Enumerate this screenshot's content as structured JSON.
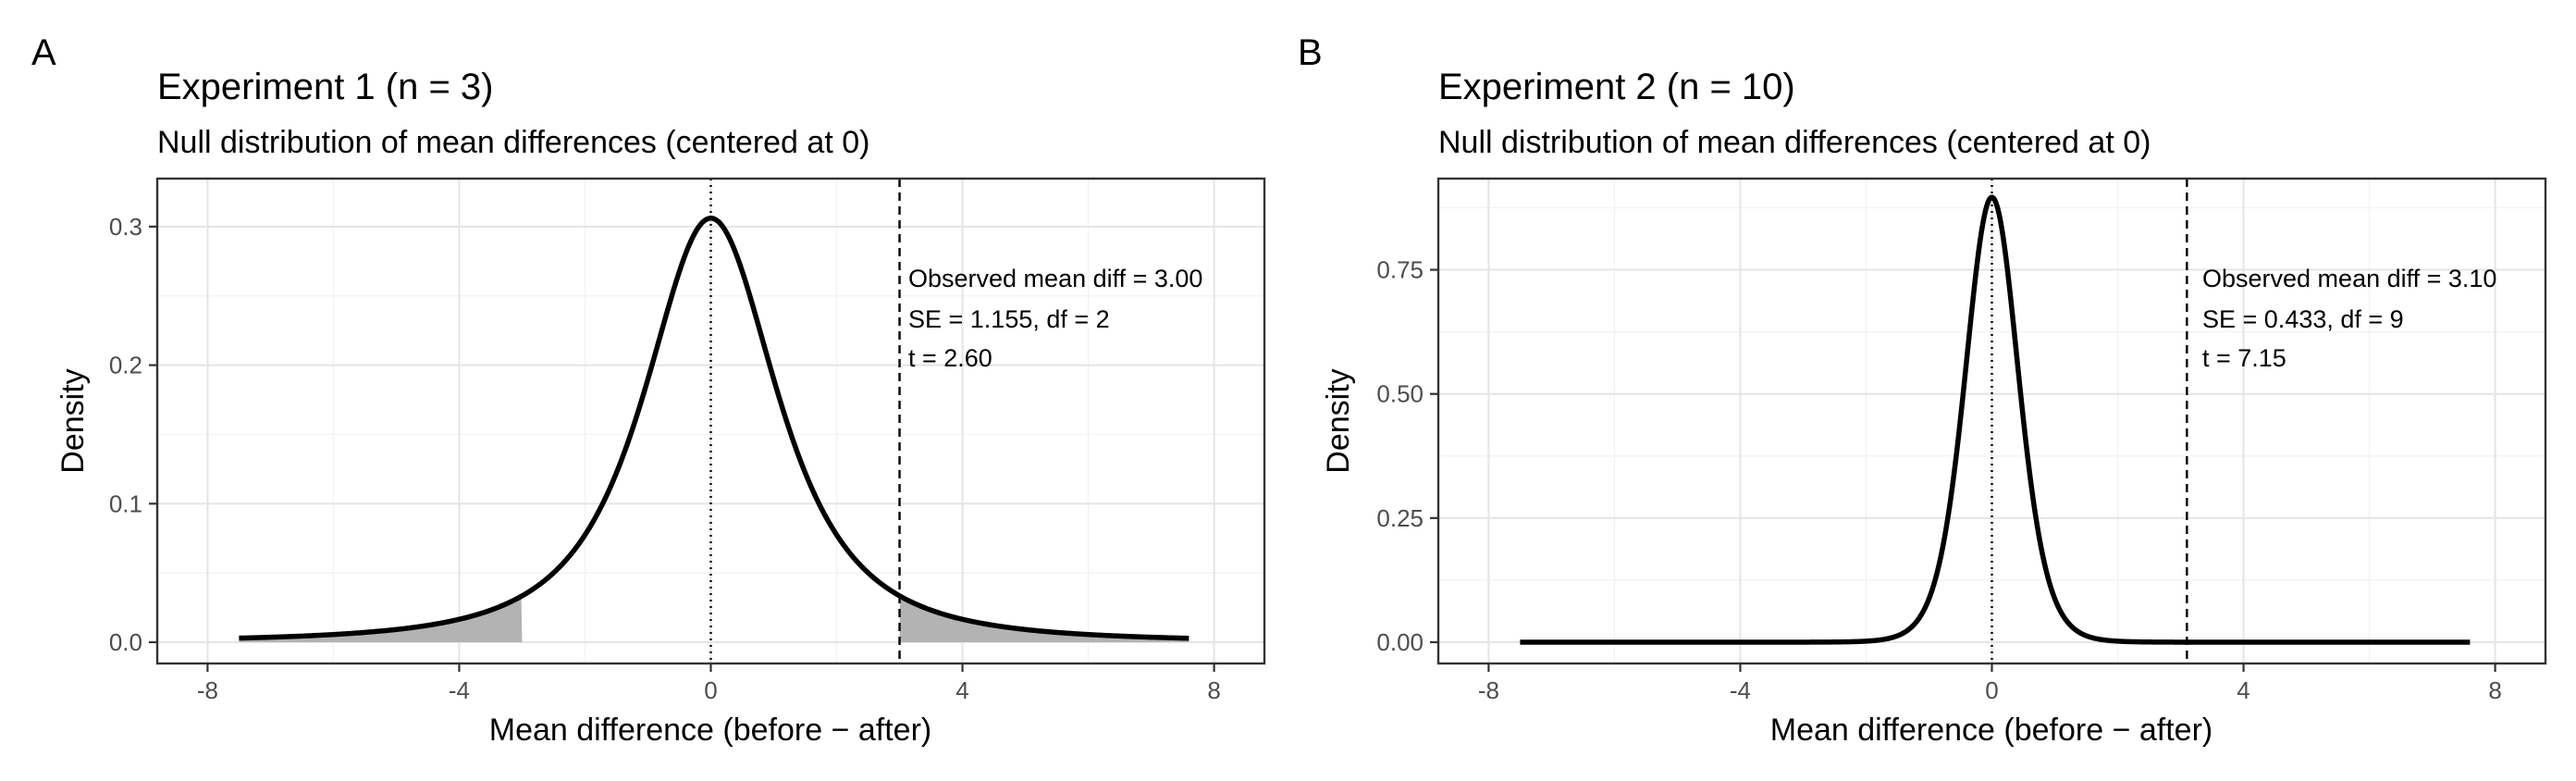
{
  "panels": [
    {
      "letter": "A",
      "title": "Experiment 1 (n = 3)",
      "subtitle": "Null distribution of mean differences (centered at 0)",
      "annotation": [
        " Observed mean diff = 3.00",
        "SE = 1.155, df = 2",
        "t = 2.60"
      ]
    },
    {
      "letter": "B",
      "title": "Experiment 2 (n = 10)",
      "subtitle": "Null distribution of mean differences (centered at 0)",
      "annotation": [
        " Observed mean diff = 3.10",
        "SE = 0.433, df = 9",
        "t = 7.15"
      ]
    }
  ],
  "chart_data": [
    {
      "type": "line",
      "title": "Experiment 1 (n = 3)",
      "subtitle": "Null distribution of mean differences (centered at 0)",
      "xlabel": "Mean difference (before − after)",
      "ylabel": "Density",
      "xlim": [
        -8,
        8
      ],
      "ylim": [
        0,
        0.3
      ],
      "xticks": [
        -8,
        -4,
        0,
        4,
        8
      ],
      "xtick_labels": [
        "-8",
        "-4",
        "0",
        "4",
        "8"
      ],
      "yticks": [
        0,
        0.1,
        0.2,
        0.3
      ],
      "ytick_labels": [
        "0.0",
        "0.1",
        "0.2",
        "0.3"
      ],
      "grid": true,
      "distribution": "t",
      "df": 2,
      "se": 1.155,
      "curve_x_range": [
        -7.5,
        7.6
      ],
      "observed_mean_diff": 3.0,
      "t_stat": 2.6,
      "center_line_x": 0,
      "observed_line_x": 3.0,
      "shaded_tails": [
        [
          -7.5,
          -3.0
        ],
        [
          3.0,
          7.6
        ]
      ],
      "samples": {
        "x": [
          -7.5,
          -6,
          -4,
          -3,
          -2,
          -1,
          0,
          1,
          2,
          3,
          4,
          6,
          7.6
        ],
        "y": [
          0.003,
          0.007,
          0.017,
          0.034,
          0.085,
          0.224,
          0.306,
          0.224,
          0.085,
          0.034,
          0.017,
          0.007,
          0.003
        ]
      }
    },
    {
      "type": "line",
      "title": "Experiment 2 (n = 10)",
      "subtitle": "Null distribution of mean differences (centered at 0)",
      "xlabel": "Mean difference (before − after)",
      "ylabel": "Density",
      "xlim": [
        -8,
        8
      ],
      "ylim": [
        0,
        0.75
      ],
      "xticks": [
        -8,
        -4,
        0,
        4,
        8
      ],
      "xtick_labels": [
        "-8",
        "-4",
        "0",
        "4",
        "8"
      ],
      "yticks": [
        0,
        0.25,
        0.5,
        0.75
      ],
      "ytick_labels": [
        "0.00",
        "0.25",
        "0.50",
        "0.75"
      ],
      "grid": true,
      "distribution": "t",
      "df": 9,
      "se": 0.433,
      "curve_x_range": [
        -7.5,
        7.6
      ],
      "observed_mean_diff": 3.1,
      "t_stat": 7.15,
      "center_line_x": 0,
      "observed_line_x": 3.1,
      "shaded_tails": [],
      "samples": {
        "x": [
          -3,
          -2,
          -1,
          -0.5,
          0,
          0.5,
          1,
          2,
          3
        ],
        "y": [
          0.0,
          0.002,
          0.066,
          0.467,
          0.895,
          0.467,
          0.066,
          0.002,
          0.0
        ]
      }
    }
  ]
}
